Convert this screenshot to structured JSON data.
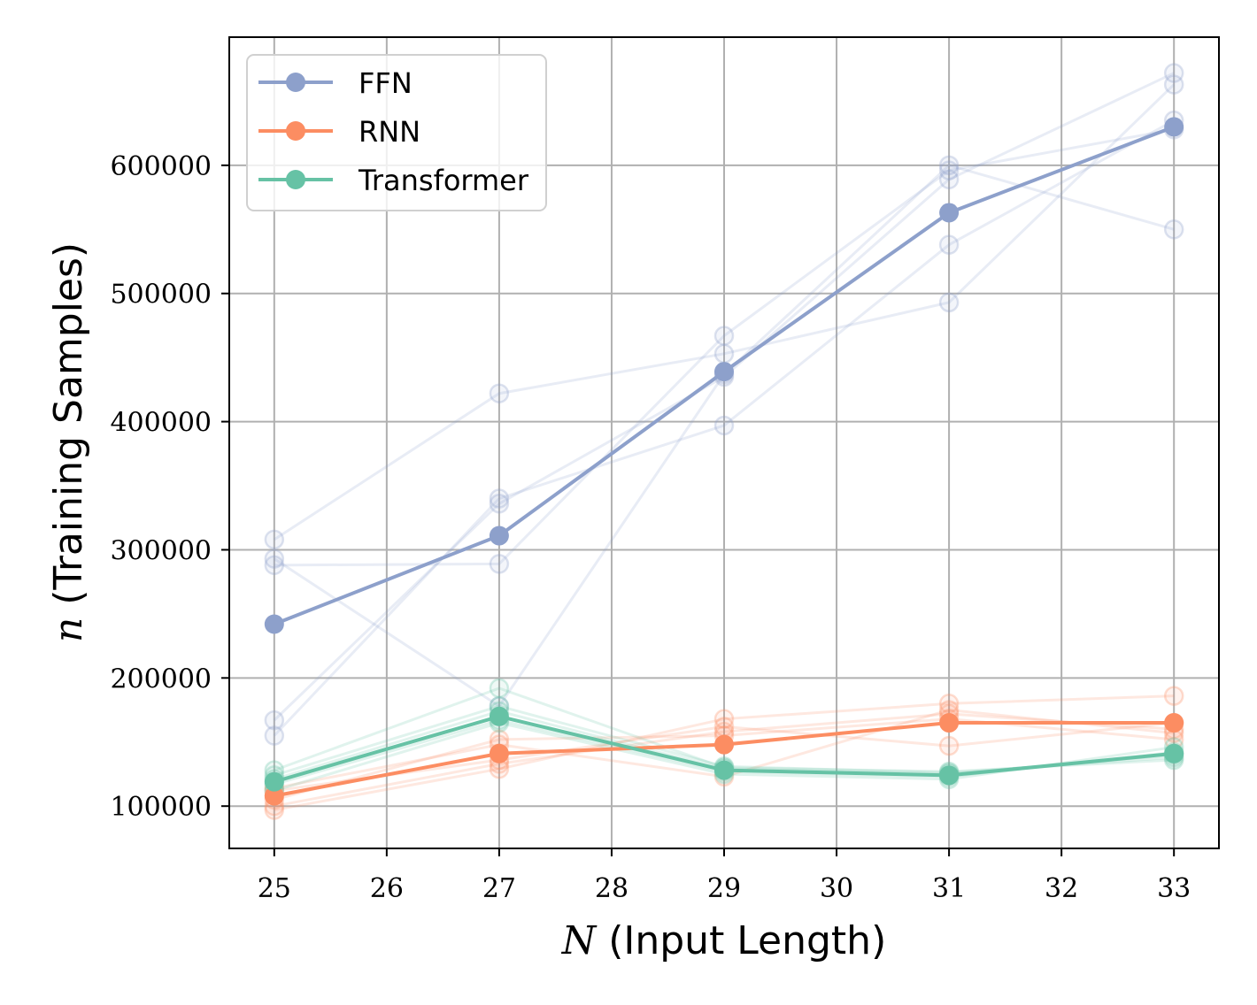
{
  "chart_data": {
    "type": "line",
    "xlabel_var": "N",
    "xlabel_text": " (Input Length)",
    "ylabel_var": "n",
    "ylabel_text": " (Training Samples)",
    "xlim": [
      24.6,
      33.4
    ],
    "ylim": [
      67000,
      700000
    ],
    "x_ticks": [
      25,
      26,
      27,
      28,
      29,
      30,
      31,
      32,
      33
    ],
    "y_ticks": [
      100000,
      200000,
      300000,
      400000,
      500000,
      600000
    ],
    "y_tick_labels": [
      "100000",
      "200000",
      "300000",
      "400000",
      "500000",
      "600000"
    ],
    "grid": true,
    "legend_position": "top-left",
    "x": [
      25,
      27,
      29,
      31,
      33
    ],
    "series": [
      {
        "name": "FFN",
        "color": "#8da0cb",
        "values": [
          242000,
          311000,
          439000,
          563000,
          630000
        ],
        "runs": [
          [
            308000,
            422000,
            453000,
            493000,
            663000
          ],
          [
            293000,
            178000,
            437000,
            600000,
            550000
          ],
          [
            167000,
            336000,
            435000,
            589000,
            672000
          ],
          [
            155000,
            340000,
            397000,
            538000,
            635000
          ],
          [
            288000,
            289000,
            467000,
            596000,
            628000
          ]
        ]
      },
      {
        "name": "RNN",
        "color": "#fc8d62",
        "values": [
          108000,
          141000,
          148000,
          165000,
          165000
        ],
        "runs": [
          [
            97000,
            129000,
            168000,
            180000,
            186000
          ],
          [
            114000,
            148000,
            123000,
            175000,
            157000
          ],
          [
            112000,
            136000,
            162000,
            147000,
            165000
          ],
          [
            105000,
            152000,
            155000,
            168000,
            152000
          ],
          [
            100000,
            133000,
            158000,
            172000,
            160000
          ]
        ]
      },
      {
        "name": "Transformer",
        "color": "#66c2a5",
        "values": [
          119000,
          170000,
          128000,
          124000,
          141000
        ],
        "runs": [
          [
            128000,
            192000,
            130000,
            127000,
            136000
          ],
          [
            112000,
            165000,
            125000,
            121000,
            146000
          ],
          [
            121000,
            174000,
            129000,
            125000,
            140000
          ],
          [
            117000,
            167000,
            127000,
            123000,
            142000
          ],
          [
            124000,
            178000,
            131000,
            126000,
            138000
          ]
        ]
      }
    ]
  }
}
